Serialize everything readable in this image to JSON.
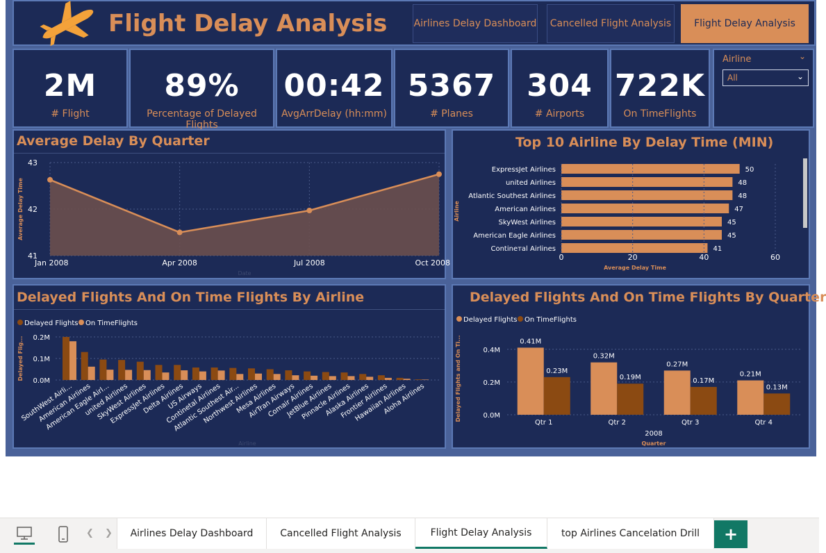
{
  "header": {
    "title": "Flight Delay Analysis",
    "nav": [
      "Airlines Delay Dashboard",
      "Cancelled Flight Analysis",
      "Flight Delay Analysis"
    ]
  },
  "cards": [
    {
      "value": "2M",
      "label": "# Flight"
    },
    {
      "value": "89%",
      "label": "Percentage of Delayed Flights"
    },
    {
      "value": "00:42",
      "label": "AvgArrDelay (hh:mm)"
    },
    {
      "value": "5367",
      "label": "# Planes"
    },
    {
      "value": "304",
      "label": "# Airports"
    },
    {
      "value": "722K",
      "label": "On TimeFlights"
    }
  ],
  "slicer": {
    "title": "Airline",
    "value": "All"
  },
  "colors": {
    "accent": "#d98e58",
    "dark_series": "#8b4a12",
    "panel": "#1c2a56",
    "tab_active": "#117865"
  },
  "chart_data": [
    {
      "type": "area",
      "title": "Average Delay By Quarter",
      "categories": [
        "Jan 2008",
        "Apr 2008",
        "Jul 2008",
        "Oct 2008"
      ],
      "values": [
        42.63,
        41.5,
        41.97,
        42.75
      ],
      "ylabel": "Average Delay Time",
      "xlabel": "Date",
      "ylim": [
        41,
        43
      ],
      "yticks": [
        "41",
        "42",
        "43"
      ]
    },
    {
      "type": "bar",
      "orientation": "horizontal",
      "title": "Top 10 Airline By Delay Time (MIN)",
      "categories": [
        "ExpressJet Airlines",
        "united Airlines",
        "Atlantic Southest Airlines",
        "American Airlines",
        "SkyWest Airlines",
        "American Eagle Airlines",
        "Contineтal Airlines"
      ],
      "values": [
        50,
        48,
        48,
        47,
        45,
        45,
        41
      ],
      "xlabel": "Average Delay Time",
      "ylabel": "Airline",
      "xlim": [
        0,
        60
      ],
      "xticks": [
        "0",
        "20",
        "40",
        "60"
      ]
    },
    {
      "type": "bar",
      "title": "Delayed Flights And On Time Flights By Airline",
      "legend": [
        "Delayed Flights",
        "On TimeFlights"
      ],
      "categories": [
        "SouthWest Airli...",
        "American Airlines",
        "American Eagle Airl...",
        "united Airlines",
        "SkyWest Airlines",
        "ExpressJet Airlines",
        "Delta Airlines",
        "US Airways",
        "Continetal Airlines",
        "Atlantic Southest Air...",
        "Northwest Airlines",
        "Mesa Airlines",
        "AirTran Airways",
        "Comair Airlines",
        "JetBlue Airlines",
        "Pinnacle Airlines",
        "Alaska Airlines",
        "Frontier Airlines",
        "Hawaiian Airlines",
        "Aloha Airlines"
      ],
      "series": [
        {
          "name": "Delayed Flights",
          "values": [
            0.2,
            0.13,
            0.095,
            0.093,
            0.085,
            0.07,
            0.07,
            0.058,
            0.058,
            0.056,
            0.054,
            0.05,
            0.045,
            0.04,
            0.037,
            0.035,
            0.028,
            0.022,
            0.01,
            0.003
          ]
        },
        {
          "name": "On TimeFlights",
          "values": [
            0.18,
            0.062,
            0.048,
            0.047,
            0.046,
            0.035,
            0.045,
            0.04,
            0.044,
            0.028,
            0.03,
            0.028,
            0.022,
            0.02,
            0.018,
            0.018,
            0.015,
            0.01,
            0.006,
            0.002
          ]
        }
      ],
      "ylabel": "Delayed Flig...",
      "xlabel": "Airline",
      "ylim": [
        0,
        0.2
      ],
      "yticks": [
        "0.0M",
        "0.1M",
        "0.2M"
      ]
    },
    {
      "type": "bar",
      "title": "Delayed Flights And On Time Flights By Quarter",
      "legend": [
        "Delayed Flights",
        "On TimeFlights"
      ],
      "categories": [
        "Qtr 1",
        "Qtr 2",
        "Qtr 3",
        "Qtr 4"
      ],
      "series": [
        {
          "name": "Delayed Flights",
          "values": [
            0.41,
            0.32,
            0.27,
            0.21
          ],
          "labels": [
            "0.41M",
            "0.32M",
            "0.27M",
            "0.21M"
          ]
        },
        {
          "name": "On TimeFlights",
          "values": [
            0.23,
            0.19,
            0.17,
            0.13
          ],
          "labels": [
            "0.23M",
            "0.19M",
            "0.17M",
            "0.13M"
          ]
        }
      ],
      "group_label": "2008",
      "xlabel": "Quarter",
      "ylabel": "Delayed Flights and On Ti...",
      "ylim": [
        0,
        0.45
      ],
      "yticks": [
        "0.0M",
        "0.2M",
        "0.4M"
      ]
    }
  ],
  "tabs": [
    "Airlines Delay Dashboard",
    "Cancelled Flight Analysis",
    "Flight Delay Analysis",
    "top Airlines Cancelation Drill"
  ],
  "add_page": "+"
}
